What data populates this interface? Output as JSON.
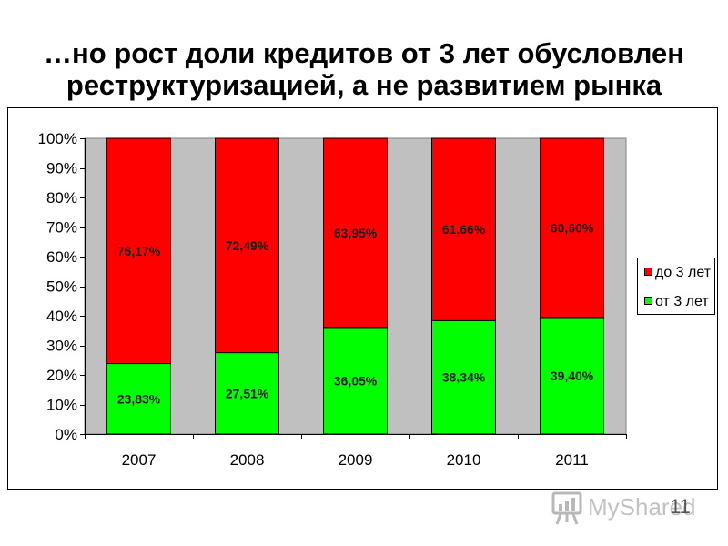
{
  "slide": {
    "title_lines": [
      "…но рост доли кредитов от 3 лет обусловлен",
      "реструктуризацией, а не развитием рынка"
    ],
    "page_number": "11"
  },
  "watermark": {
    "text": "MyShared",
    "icon": "presentation-board-icon"
  },
  "chart_data": {
    "type": "bar",
    "stacked": "percent",
    "categories": [
      "2007",
      "2008",
      "2009",
      "2010",
      "2011"
    ],
    "series": [
      {
        "name": "от 3 лет",
        "color": "#00FF00",
        "values": [
          23.83,
          27.51,
          36.05,
          38.34,
          39.4
        ],
        "labels": [
          "23,83%",
          "27,51%",
          "36,05%",
          "38,34%",
          "39,40%"
        ]
      },
      {
        "name": "до 3 лет",
        "color": "#FF0000",
        "values": [
          76.17,
          72.49,
          63.95,
          61.66,
          60.6
        ],
        "labels": [
          "76,17%",
          "72,49%",
          "63,95%",
          "61,66%",
          "60,60%"
        ]
      }
    ],
    "ylim": [
      0,
      100
    ],
    "yticks": [
      0,
      10,
      20,
      30,
      40,
      50,
      60,
      70,
      80,
      90,
      100
    ],
    "ytick_labels": [
      "0%",
      "10%",
      "20%",
      "30%",
      "40%",
      "50%",
      "60%",
      "70%",
      "80%",
      "90%",
      "100%"
    ],
    "grid": false,
    "legend_position": "right",
    "plot_background": "#C0C0C0"
  }
}
